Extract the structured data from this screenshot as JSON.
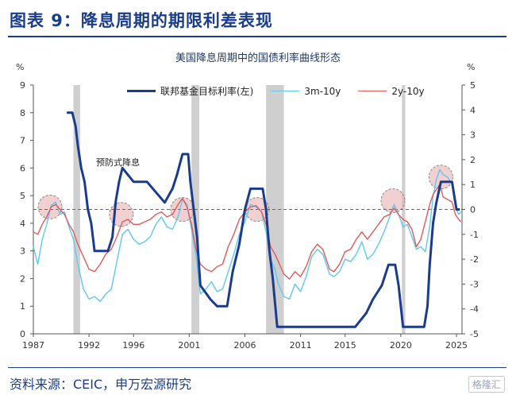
{
  "header": {
    "figure_title": "图表 9：降息周期的期限利差表现"
  },
  "footer": {
    "source": "资料来源：CEIC，申万宏源研究",
    "watermark": "格隆汇"
  },
  "colors": {
    "ffr": "#1a3c8c",
    "spread_3m10y": "#5ec8ee",
    "spread_2y10y": "#e05a5a",
    "shade": "#cfcfcf",
    "circle": "#e3a9a9",
    "dash": "#666666"
  },
  "chart_data": {
    "type": "line",
    "title": "美国降息周期中的国债利率曲线形态",
    "left_unit": "%",
    "right_unit": "%",
    "x_ticks": [
      "1987",
      "1992",
      "1996",
      "2001",
      "2006",
      "2011",
      "2015",
      "2020",
      "2025"
    ],
    "x_range": [
      1987,
      2025.5
    ],
    "y_left_ticks": [
      "0",
      "1",
      "2",
      "3",
      "4",
      "5",
      "6",
      "7",
      "8",
      "9"
    ],
    "y_left_range": [
      0,
      9
    ],
    "y_right_ticks": [
      "-5",
      "-4",
      "-3",
      "-2",
      "-1",
      "0",
      "1",
      "2",
      "3",
      "4",
      "5"
    ],
    "y_right_range": [
      -5,
      5
    ],
    "legend": [
      "联邦基金目标利率(左)",
      "3m-10y",
      "2y-10y"
    ],
    "annotation": "预防式降息",
    "reference_line_right": 0,
    "recessions": [
      [
        1990.6,
        1991.2
      ],
      [
        2001.2,
        2001.9
      ],
      [
        2007.9,
        2009.5
      ],
      [
        2020.1,
        2020.4
      ]
    ],
    "highlight_circles": [
      {
        "x": 1988.5,
        "y_right": 0.1
      },
      {
        "x": 1994.9,
        "y_right": -0.2
      },
      {
        "x": 2000.4,
        "y_right": 0.0
      },
      {
        "x": 2007.1,
        "y_right": 0.0
      },
      {
        "x": 2019.3,
        "y_right": 0.35
      },
      {
        "x": 2023.6,
        "y_right": 1.3
      }
    ],
    "series": [
      {
        "name": "联邦基金目标利率(左)",
        "axis": "left",
        "points": [
          [
            1990.0,
            8.0
          ],
          [
            1990.5,
            8.0
          ],
          [
            1990.8,
            7.5
          ],
          [
            1991.0,
            6.8
          ],
          [
            1991.3,
            6.0
          ],
          [
            1991.6,
            5.5
          ],
          [
            1991.9,
            4.5
          ],
          [
            1992.2,
            4.0
          ],
          [
            1992.5,
            3.0
          ],
          [
            1993.7,
            3.0
          ],
          [
            1994.1,
            3.5
          ],
          [
            1994.4,
            4.8
          ],
          [
            1994.7,
            5.5
          ],
          [
            1995.0,
            6.0
          ],
          [
            1995.5,
            5.75
          ],
          [
            1996.0,
            5.5
          ],
          [
            1997.2,
            5.5
          ],
          [
            1998.8,
            4.75
          ],
          [
            1999.5,
            5.25
          ],
          [
            1999.9,
            5.75
          ],
          [
            2000.4,
            6.5
          ],
          [
            2000.9,
            6.5
          ],
          [
            2001.1,
            5.5
          ],
          [
            2001.4,
            4.5
          ],
          [
            2001.7,
            3.5
          ],
          [
            2002.0,
            1.75
          ],
          [
            2002.9,
            1.25
          ],
          [
            2003.5,
            1.0
          ],
          [
            2004.4,
            1.0
          ],
          [
            2004.9,
            2.25
          ],
          [
            2005.5,
            3.25
          ],
          [
            2006.0,
            4.5
          ],
          [
            2006.5,
            5.25
          ],
          [
            2007.6,
            5.25
          ],
          [
            2007.9,
            4.5
          ],
          [
            2008.2,
            3.0
          ],
          [
            2008.5,
            2.0
          ],
          [
            2008.9,
            0.25
          ],
          [
            2015.9,
            0.25
          ],
          [
            2016.9,
            0.75
          ],
          [
            2017.5,
            1.25
          ],
          [
            2018.3,
            1.75
          ],
          [
            2018.9,
            2.5
          ],
          [
            2019.5,
            2.5
          ],
          [
            2019.8,
            1.75
          ],
          [
            2020.2,
            0.25
          ],
          [
            2022.1,
            0.25
          ],
          [
            2022.4,
            1.0
          ],
          [
            2022.6,
            2.5
          ],
          [
            2022.9,
            4.0
          ],
          [
            2023.2,
            4.75
          ],
          [
            2023.6,
            5.5
          ],
          [
            2024.6,
            5.5
          ],
          [
            2024.8,
            5.0
          ],
          [
            2024.9,
            4.75
          ],
          [
            2025.0,
            4.5
          ],
          [
            2025.3,
            4.5
          ]
        ]
      },
      {
        "name": "3m-10y",
        "axis": "right",
        "points": [
          [
            1987.0,
            -1.5
          ],
          [
            1987.4,
            -2.2
          ],
          [
            1987.8,
            -1.2
          ],
          [
            1988.2,
            -0.6
          ],
          [
            1988.6,
            0.15
          ],
          [
            1989.0,
            0.3
          ],
          [
            1989.4,
            -0.2
          ],
          [
            1989.8,
            -0.1
          ],
          [
            1990.2,
            -0.7
          ],
          [
            1990.6,
            -1.2
          ],
          [
            1991.0,
            -2.2
          ],
          [
            1991.5,
            -3.2
          ],
          [
            1992.0,
            -3.6
          ],
          [
            1992.5,
            -3.5
          ],
          [
            1993.0,
            -3.7
          ],
          [
            1993.5,
            -3.4
          ],
          [
            1994.0,
            -3.2
          ],
          [
            1994.5,
            -2.1
          ],
          [
            1995.0,
            -1.0
          ],
          [
            1995.5,
            -0.8
          ],
          [
            1996.0,
            -1.2
          ],
          [
            1996.5,
            -1.4
          ],
          [
            1997.0,
            -1.3
          ],
          [
            1997.5,
            -1.1
          ],
          [
            1998.0,
            -0.6
          ],
          [
            1998.5,
            -0.3
          ],
          [
            1999.0,
            -0.7
          ],
          [
            1999.5,
            -0.8
          ],
          [
            2000.0,
            -0.3
          ],
          [
            2000.4,
            0.4
          ],
          [
            2000.8,
            0.2
          ],
          [
            2001.2,
            -0.8
          ],
          [
            2001.6,
            -1.8
          ],
          [
            2002.0,
            -3.4
          ],
          [
            2002.5,
            -3.2
          ],
          [
            2003.0,
            -2.9
          ],
          [
            2003.5,
            -3.3
          ],
          [
            2004.0,
            -3.2
          ],
          [
            2004.5,
            -2.5
          ],
          [
            2005.0,
            -1.8
          ],
          [
            2005.5,
            -1.0
          ],
          [
            2006.0,
            -0.5
          ],
          [
            2006.5,
            0.2
          ],
          [
            2007.0,
            0.1
          ],
          [
            2007.5,
            -0.1
          ],
          [
            2007.9,
            -0.9
          ],
          [
            2008.3,
            -2.0
          ],
          [
            2008.7,
            -2.4
          ],
          [
            2009.0,
            -3.0
          ],
          [
            2009.5,
            -3.5
          ],
          [
            2010.0,
            -3.6
          ],
          [
            2010.5,
            -3.0
          ],
          [
            2011.0,
            -3.3
          ],
          [
            2011.5,
            -2.7
          ],
          [
            2012.0,
            -1.9
          ],
          [
            2012.5,
            -1.6
          ],
          [
            2013.0,
            -1.8
          ],
          [
            2013.6,
            -2.6
          ],
          [
            2014.0,
            -2.7
          ],
          [
            2014.5,
            -2.5
          ],
          [
            2015.0,
            -2.0
          ],
          [
            2015.5,
            -2.1
          ],
          [
            2016.0,
            -1.8
          ],
          [
            2016.5,
            -1.3
          ],
          [
            2017.0,
            -2.0
          ],
          [
            2017.5,
            -1.8
          ],
          [
            2018.0,
            -1.4
          ],
          [
            2018.5,
            -0.9
          ],
          [
            2019.0,
            -0.3
          ],
          [
            2019.4,
            0.2
          ],
          [
            2019.8,
            -0.2
          ],
          [
            2020.2,
            -0.7
          ],
          [
            2020.6,
            -0.6
          ],
          [
            2021.0,
            -1.1
          ],
          [
            2021.4,
            -1.6
          ],
          [
            2021.8,
            -1.5
          ],
          [
            2022.2,
            -1.7
          ],
          [
            2022.6,
            -0.7
          ],
          [
            2022.9,
            0.5
          ],
          [
            2023.2,
            1.2
          ],
          [
            2023.5,
            1.6
          ],
          [
            2023.8,
            1.4
          ],
          [
            2024.2,
            1.3
          ],
          [
            2024.6,
            1.0
          ],
          [
            2024.9,
            0.1
          ],
          [
            2025.2,
            -0.2
          ],
          [
            2025.4,
            -0.1
          ]
        ]
      },
      {
        "name": "2y-10y",
        "axis": "right",
        "points": [
          [
            1987.0,
            -0.9
          ],
          [
            1987.4,
            -1.0
          ],
          [
            1987.8,
            -0.6
          ],
          [
            1988.2,
            -0.3
          ],
          [
            1988.6,
            0.1
          ],
          [
            1989.0,
            0.2
          ],
          [
            1989.4,
            0.0
          ],
          [
            1989.8,
            -0.2
          ],
          [
            1990.2,
            -0.6
          ],
          [
            1990.6,
            -0.9
          ],
          [
            1991.0,
            -1.4
          ],
          [
            1991.5,
            -1.9
          ],
          [
            1992.0,
            -2.4
          ],
          [
            1992.5,
            -2.5
          ],
          [
            1993.0,
            -2.2
          ],
          [
            1993.5,
            -1.8
          ],
          [
            1994.0,
            -1.6
          ],
          [
            1994.5,
            -1.1
          ],
          [
            1995.0,
            -0.5
          ],
          [
            1995.5,
            -0.4
          ],
          [
            1996.0,
            -0.6
          ],
          [
            1996.5,
            -0.6
          ],
          [
            1997.0,
            -0.5
          ],
          [
            1997.5,
            -0.4
          ],
          [
            1998.0,
            -0.2
          ],
          [
            1998.5,
            -0.1
          ],
          [
            1999.0,
            -0.3
          ],
          [
            1999.5,
            -0.2
          ],
          [
            2000.0,
            0.2
          ],
          [
            2000.4,
            0.45
          ],
          [
            2000.8,
            0.1
          ],
          [
            2001.2,
            -0.6
          ],
          [
            2001.6,
            -1.6
          ],
          [
            2002.0,
            -2.2
          ],
          [
            2002.5,
            -2.4
          ],
          [
            2003.0,
            -2.5
          ],
          [
            2003.5,
            -2.3
          ],
          [
            2004.0,
            -2.2
          ],
          [
            2004.5,
            -1.5
          ],
          [
            2005.0,
            -1.0
          ],
          [
            2005.5,
            -0.4
          ],
          [
            2006.0,
            -0.1
          ],
          [
            2006.5,
            0.1
          ],
          [
            2007.0,
            0.15
          ],
          [
            2007.5,
            -0.1
          ],
          [
            2007.9,
            -0.6
          ],
          [
            2008.3,
            -1.5
          ],
          [
            2008.7,
            -1.8
          ],
          [
            2009.0,
            -2.1
          ],
          [
            2009.5,
            -2.6
          ],
          [
            2010.0,
            -2.8
          ],
          [
            2010.5,
            -2.5
          ],
          [
            2011.0,
            -2.7
          ],
          [
            2011.5,
            -2.3
          ],
          [
            2012.0,
            -1.7
          ],
          [
            2012.5,
            -1.4
          ],
          [
            2013.0,
            -1.6
          ],
          [
            2013.6,
            -2.4
          ],
          [
            2014.0,
            -2.5
          ],
          [
            2014.5,
            -2.2
          ],
          [
            2015.0,
            -1.7
          ],
          [
            2015.5,
            -1.6
          ],
          [
            2016.0,
            -1.2
          ],
          [
            2016.5,
            -0.9
          ],
          [
            2017.0,
            -1.2
          ],
          [
            2017.5,
            -0.9
          ],
          [
            2018.0,
            -0.6
          ],
          [
            2018.5,
            -0.3
          ],
          [
            2019.0,
            -0.2
          ],
          [
            2019.4,
            0.05
          ],
          [
            2019.8,
            -0.2
          ],
          [
            2020.2,
            -0.4
          ],
          [
            2020.6,
            -0.5
          ],
          [
            2021.0,
            -0.8
          ],
          [
            2021.4,
            -1.5
          ],
          [
            2021.8,
            -1.2
          ],
          [
            2022.2,
            -0.5
          ],
          [
            2022.6,
            0.2
          ],
          [
            2022.9,
            0.6
          ],
          [
            2023.2,
            0.8
          ],
          [
            2023.5,
            1.0
          ],
          [
            2023.8,
            0.5
          ],
          [
            2024.2,
            0.4
          ],
          [
            2024.6,
            0.3
          ],
          [
            2024.9,
            -0.2
          ],
          [
            2025.2,
            -0.4
          ],
          [
            2025.4,
            -0.5
          ]
        ]
      }
    ]
  }
}
